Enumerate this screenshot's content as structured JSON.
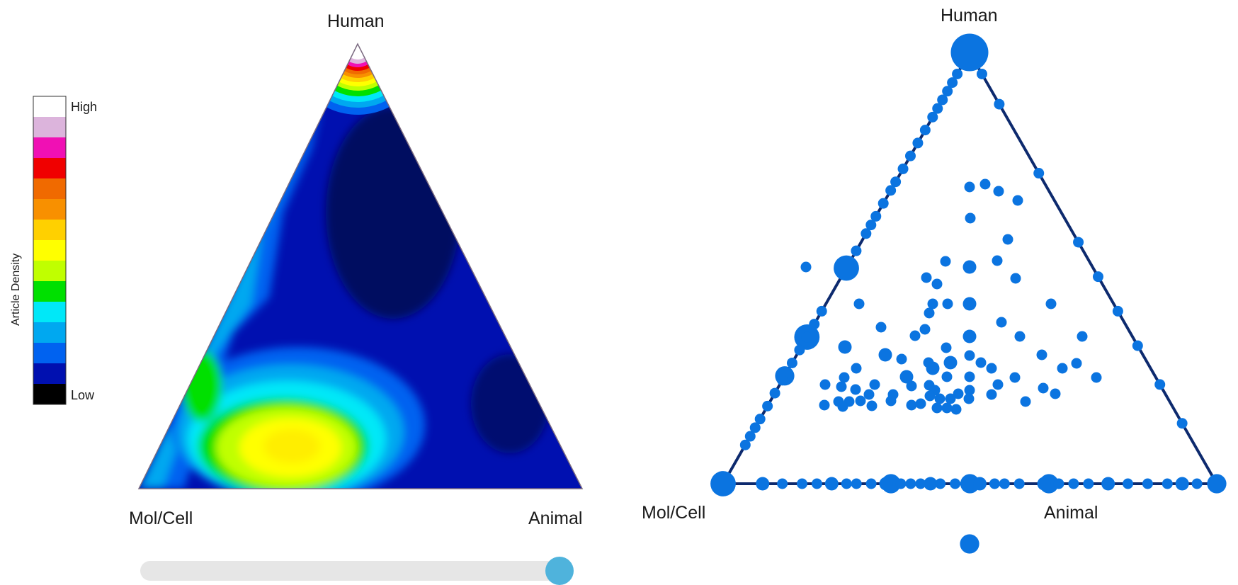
{
  "chart_data": [
    {
      "type": "heatmap",
      "subtype": "ternary-density",
      "vertex_labels": {
        "top": "Human",
        "bottom_left": "Mol/Cell",
        "bottom_right": "Animal"
      },
      "colorbar": {
        "title": "Article Density",
        "high_label": "High",
        "low_label": "Low",
        "colors": [
          "#ffffff",
          "#dcb4dc",
          "#f010b4",
          "#f00000",
          "#f06a00",
          "#f89000",
          "#ffd000",
          "#ffff00",
          "#c0ff00",
          "#00e000",
          "#00e8f8",
          "#00a8f0",
          "#0062f0",
          "#0010b0",
          "#000000"
        ]
      },
      "density_peaks": [
        {
          "human": 0.98,
          "molcell": 0.01,
          "animal": 0.01,
          "level": "High"
        },
        {
          "human": 0.06,
          "molcell": 0.68,
          "animal": 0.26,
          "level": "Yellow"
        },
        {
          "human": 0.18,
          "molcell": 0.82,
          "animal": 0.0,
          "level": "Green"
        }
      ],
      "slider": {
        "value": 1.0
      }
    },
    {
      "type": "scatter",
      "subtype": "ternary-bubble",
      "vertex_labels": {
        "top": "Human",
        "bottom_left": "Mol/Cell",
        "bottom_right": "Animal"
      },
      "point_color": "#0b74e0",
      "edge_color": "#0d2a6e",
      "points_ternary": [
        {
          "human": 1.0,
          "molcell": 0.0,
          "animal": 0.0,
          "size": 5
        },
        {
          "human": 0.0,
          "molcell": 1.0,
          "animal": 0.0,
          "size": 3
        },
        {
          "human": 0.0,
          "molcell": 0.0,
          "animal": 1.0,
          "size": 2
        },
        {
          "human": 0.5,
          "molcell": 0.5,
          "animal": 0.0,
          "size": 3
        },
        {
          "human": 0.34,
          "molcell": 0.66,
          "animal": 0.0,
          "size": 3
        },
        {
          "human": 0.25,
          "molcell": 0.75,
          "animal": 0.0,
          "size": 2
        },
        {
          "human": 0.0,
          "molcell": 0.5,
          "animal": 0.5,
          "size": 2
        },
        {
          "human": 0.0,
          "molcell": 0.66,
          "animal": 0.34,
          "size": 2
        },
        {
          "human": 0.0,
          "molcell": 0.34,
          "animal": 0.66,
          "size": 2
        }
      ],
      "below_plot_point": {
        "size": 2
      }
    }
  ]
}
